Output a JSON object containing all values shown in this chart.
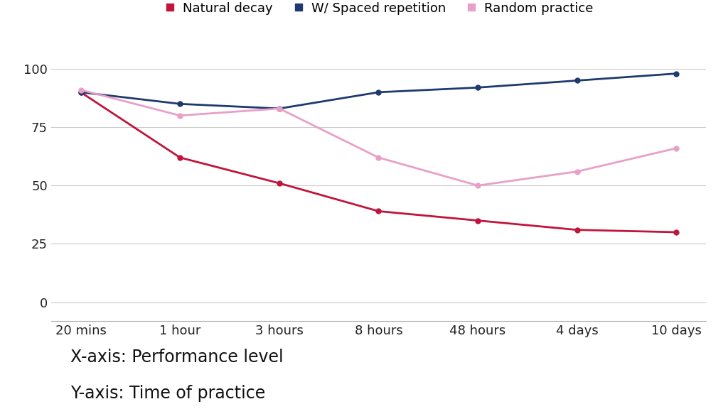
{
  "x_labels": [
    "20 mins",
    "1 hour",
    "3 hours",
    "8 hours",
    "48 hours",
    "4 days",
    "10 days"
  ],
  "natural_decay": [
    90,
    62,
    51,
    39,
    35,
    31,
    30
  ],
  "spaced_repetition": [
    90,
    85,
    83,
    90,
    92,
    95,
    98
  ],
  "random_practice": [
    91,
    80,
    83,
    62,
    50,
    56,
    66
  ],
  "natural_decay_color": "#c0143c",
  "spaced_repetition_color": "#1f3a6e",
  "random_practice_color": "#e8a0c8",
  "background_color": "#ffffff",
  "legend_labels": [
    "Natural decay",
    "W/ Spaced repetition",
    "Random practice"
  ],
  "yticks": [
    0,
    25,
    50,
    75,
    100
  ],
  "ylim": [
    -8,
    112
  ],
  "annotation_line1": "X-axis: Performance level",
  "annotation_line2": "Y-axis: Time of practice",
  "linewidth": 2.0,
  "markersize": 5
}
